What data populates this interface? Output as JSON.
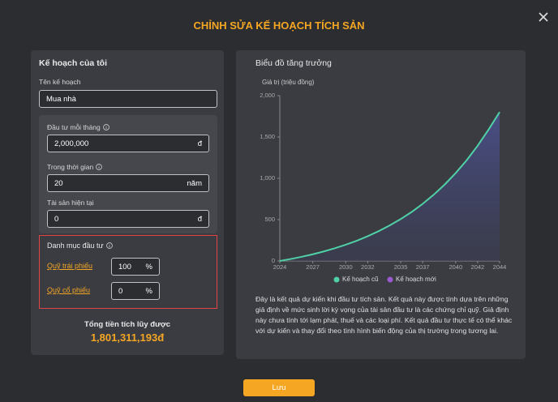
{
  "header": {
    "title": "CHỈNH SỬA KẾ HOẠCH TÍCH SẢN"
  },
  "form": {
    "section_title": "Kế hoạch của tôi",
    "plan_name_label": "Tên kế hoạch",
    "plan_name_value": "Mua nhà",
    "monthly_label": "Đầu tư mỗi tháng",
    "monthly_value": "2,000,000",
    "monthly_unit": "đ",
    "duration_label": "Trong thời gian",
    "duration_value": "20",
    "duration_unit": "năm",
    "assets_label": "Tài sản hiện tại",
    "assets_value": "0",
    "assets_unit": "đ",
    "portfolio_title": "Danh mục đầu tư",
    "funds": [
      {
        "name": "Quỹ trái phiếu",
        "value": "100",
        "unit": "%"
      },
      {
        "name": "Quỹ cổ phiếu",
        "value": "0",
        "unit": "%"
      }
    ]
  },
  "total": {
    "label": "Tổng tiền tích lũy được",
    "value": "1,801,311,193đ"
  },
  "chart_panel": {
    "description": "Đây là kết quả dự kiến khi đầu tư tích sản. Kết quả này được tính dựa trên những giả định về mức sinh lời kỳ vọng của tài sản đầu tư là các chứng chỉ quỹ. Giả định này chưa tính tới lạm phát, thuế và các loại phí. Kết quả đầu tư thực tế có thể khác với dự kiến và thay đổi theo tình hình biến động của thị trường trong tương lai."
  },
  "chart_data": {
    "type": "area",
    "title": "Biểu đồ tăng trưởng",
    "ylabel": "Giá trị (triệu đồng)",
    "x": [
      2024,
      2025,
      2026,
      2027,
      2028,
      2029,
      2030,
      2031,
      2032,
      2033,
      2034,
      2035,
      2036,
      2037,
      2038,
      2039,
      2040,
      2041,
      2042,
      2043,
      2044
    ],
    "series": [
      {
        "name": "Kế hoạch cũ",
        "color": "#4fd1a5",
        "values": [
          0,
          24,
          51,
          81,
          115,
          154,
          197,
          245,
          300,
          361,
          430,
          507,
          593,
          691,
          801,
          924,
          1063,
          1218,
          1394,
          1590,
          1801
        ]
      },
      {
        "name": "Kế hoạch mới",
        "color": "#9b59d0",
        "values": [
          0,
          24,
          51,
          81,
          115,
          154,
          197,
          245,
          300,
          361,
          430,
          507,
          593,
          691,
          801,
          924,
          1063,
          1218,
          1394,
          1590,
          1801
        ]
      }
    ],
    "xlim": [
      2024,
      2044
    ],
    "xticks": [
      2024,
      2027,
      2030,
      2032,
      2035,
      2037,
      2040,
      2042,
      2044
    ],
    "ylim": [
      0,
      2000
    ],
    "yticks": [
      0,
      500,
      {
        "value": 1000,
        "label": "1,000"
      },
      {
        "value": 1500,
        "label": "1,500"
      },
      {
        "value": 2000,
        "label": "2,000"
      }
    ],
    "legend": "bottom",
    "grid": false
  },
  "save_button": "Lưu"
}
